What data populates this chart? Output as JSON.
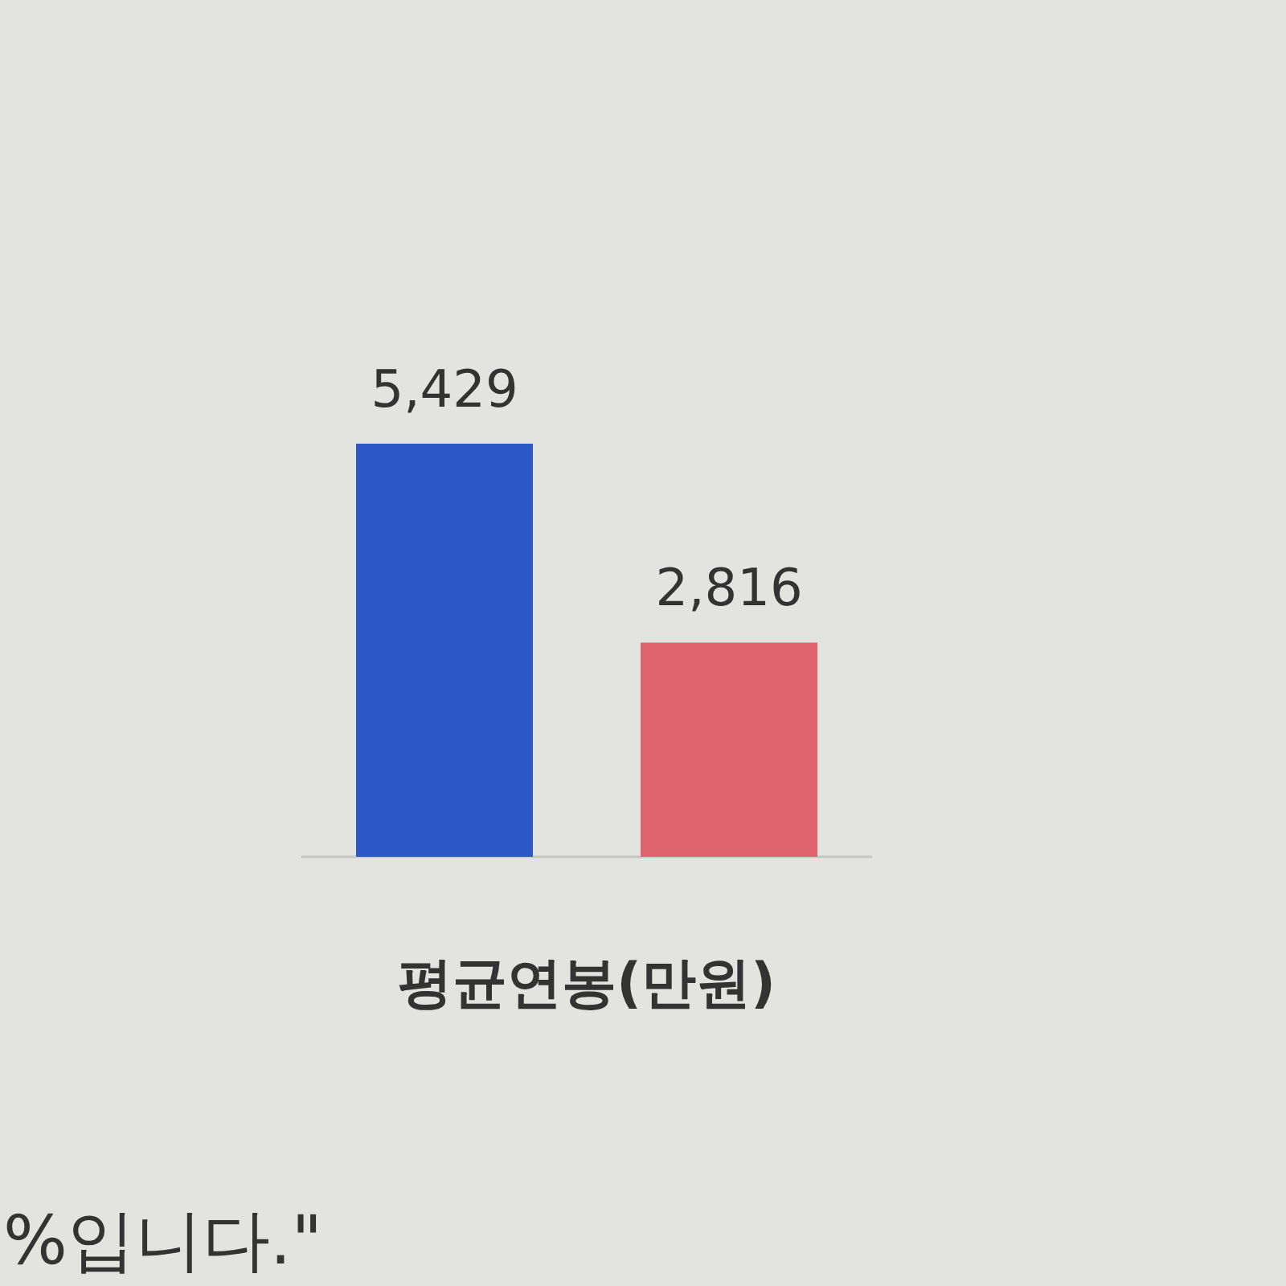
{
  "chart_data": {
    "type": "bar",
    "xlabel": "평균연봉(만원)",
    "categories": [
      null,
      null
    ],
    "values": [
      5429,
      2816
    ],
    "colors": [
      "#2c57c6",
      "#e0636e"
    ],
    "value_labels": [
      "5,429",
      "2,816"
    ],
    "annotations": [
      "%입니다.\""
    ]
  }
}
